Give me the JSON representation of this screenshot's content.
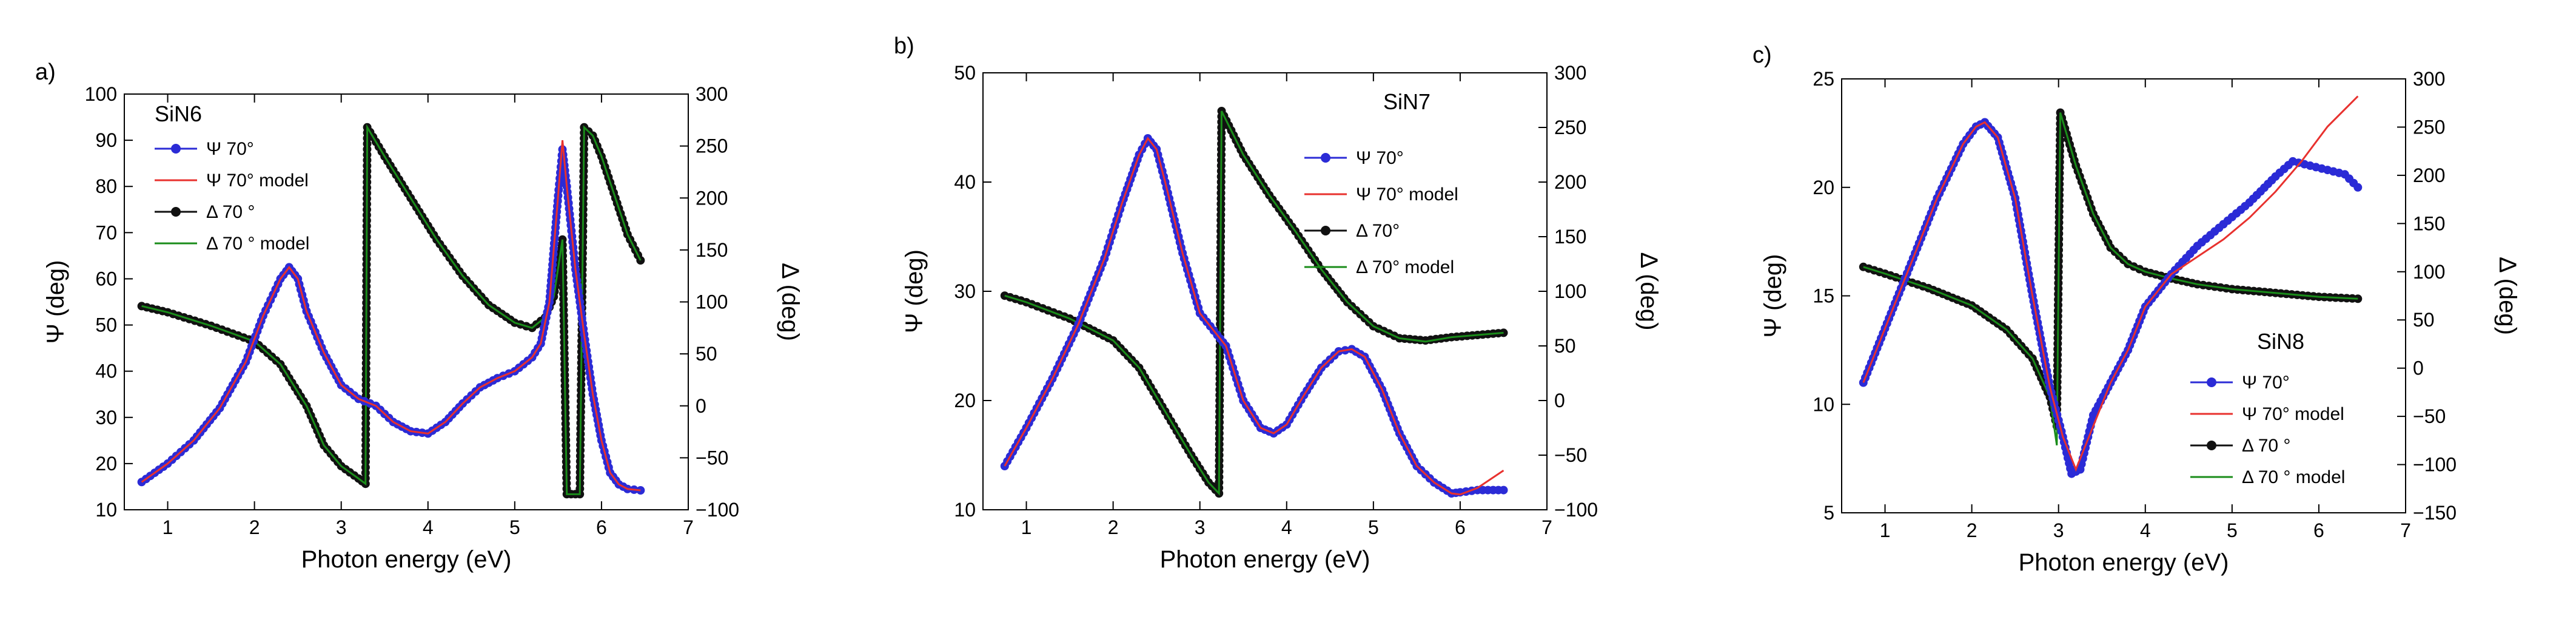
{
  "chart_data": [
    {
      "type": "line",
      "panel_label": "a)",
      "sample": "SiN6",
      "xlabel": "Photon energy (eV)",
      "ylabel": "Ψ (deg)",
      "y2label": "Δ (deg)",
      "xlim": [
        0.5,
        7
      ],
      "ylim": [
        10,
        100
      ],
      "y2lim": [
        -100,
        300
      ],
      "xticks": [
        1,
        2,
        3,
        4,
        5,
        6,
        7
      ],
      "yticks": [
        10,
        20,
        30,
        40,
        50,
        60,
        70,
        80,
        90,
        100
      ],
      "y2ticks": [
        -100,
        -50,
        0,
        50,
        100,
        150,
        200,
        250,
        300
      ],
      "legend": [
        "Ψ 70°",
        "Ψ 70° model",
        "Δ 70 °",
        "Δ 70 ° model"
      ],
      "series": [
        {
          "name": "Ψ 70°",
          "axis": "left",
          "color": "#2b2bd6",
          "x": [
            0.7,
            1.0,
            1.3,
            1.6,
            1.9,
            2.1,
            2.3,
            2.4,
            2.5,
            2.6,
            2.8,
            3.0,
            3.2,
            3.4,
            3.6,
            3.8,
            4.0,
            4.2,
            4.4,
            4.6,
            4.8,
            5.0,
            5.2,
            5.3,
            5.4,
            5.5,
            5.55,
            5.6,
            5.7,
            5.8,
            5.9,
            6.0,
            6.1,
            6.2,
            6.3,
            6.45
          ],
          "values": [
            16,
            20,
            25,
            32,
            42,
            52,
            60,
            62.5,
            60,
            53,
            44,
            37,
            34,
            32.5,
            29,
            27,
            26.5,
            29,
            33,
            36.5,
            38.5,
            40,
            43,
            46,
            55,
            78,
            88,
            80,
            62,
            48,
            35,
            25,
            18,
            15.5,
            14.5,
            14.2
          ]
        },
        {
          "name": "Ψ 70° model",
          "axis": "left",
          "color": "#e8312e",
          "x": [
            0.7,
            1.0,
            1.3,
            1.6,
            1.9,
            2.1,
            2.3,
            2.4,
            2.5,
            2.6,
            2.8,
            3.0,
            3.2,
            3.4,
            3.6,
            3.8,
            4.0,
            4.2,
            4.4,
            4.6,
            4.8,
            5.0,
            5.2,
            5.3,
            5.4,
            5.5,
            5.55,
            5.6,
            5.7,
            5.8,
            5.9,
            6.0,
            6.1,
            6.2,
            6.3,
            6.45
          ],
          "values": [
            16,
            20,
            25,
            32,
            42,
            52,
            60,
            62.5,
            60,
            53,
            44,
            37,
            34,
            32.5,
            29,
            27,
            26.5,
            29,
            33,
            36.5,
            38.5,
            40,
            43,
            46,
            55,
            78,
            90,
            80,
            62,
            48,
            35,
            25,
            18,
            15.5,
            14.5,
            14.2
          ]
        },
        {
          "name": "Δ 70 °",
          "axis": "right",
          "color": "#111111",
          "x": [
            0.7,
            1.0,
            1.5,
            2.0,
            2.3,
            2.6,
            2.8,
            3.0,
            3.2,
            3.28,
            3.3,
            3.5,
            3.8,
            4.1,
            4.4,
            4.7,
            5.0,
            5.2,
            5.35,
            5.45,
            5.55,
            5.6,
            5.65,
            5.75,
            5.8,
            5.9,
            6.0,
            6.1,
            6.2,
            6.3,
            6.45
          ],
          "values": [
            96,
            90,
            77,
            62,
            40,
            0,
            -38,
            -58,
            -70,
            -75,
            268,
            240,
            200,
            160,
            125,
            97,
            80,
            75,
            85,
            105,
            160,
            -85,
            -85,
            -85,
            268,
            260,
            240,
            215,
            190,
            165,
            140
          ]
        },
        {
          "name": "Δ 70 ° model",
          "axis": "right",
          "color": "#1a8c1a",
          "x": [
            0.7,
            1.0,
            1.5,
            2.0,
            2.3,
            2.6,
            2.8,
            3.0,
            3.2,
            3.28,
            3.3,
            3.5,
            3.8,
            4.1,
            4.4,
            4.7,
            5.0,
            5.2,
            5.35,
            5.45,
            5.55,
            5.6,
            5.65,
            5.75,
            5.8,
            5.9,
            6.0,
            6.1,
            6.2,
            6.3,
            6.45
          ],
          "values": [
            96,
            90,
            77,
            62,
            40,
            0,
            -38,
            -58,
            -70,
            -75,
            268,
            240,
            200,
            160,
            125,
            97,
            80,
            75,
            85,
            105,
            160,
            -85,
            -85,
            -85,
            268,
            260,
            240,
            215,
            190,
            165,
            140
          ]
        }
      ]
    },
    {
      "type": "line",
      "panel_label": "b)",
      "sample": "SiN7",
      "xlabel": "Photon energy (eV)",
      "ylabel": "Ψ (deg)",
      "y2label": "Δ (deg)",
      "xlim": [
        0.5,
        7
      ],
      "ylim": [
        10,
        50
      ],
      "y2lim": [
        -100,
        300
      ],
      "xticks": [
        1,
        2,
        3,
        4,
        5,
        6,
        7
      ],
      "yticks": [
        10,
        20,
        30,
        40,
        50
      ],
      "y2ticks": [
        -100,
        -50,
        0,
        50,
        100,
        150,
        200,
        250,
        300
      ],
      "legend": [
        "Ψ 70°",
        "Ψ 70° model",
        "Δ 70°",
        "Δ 70° model"
      ],
      "series": [
        {
          "name": "Ψ 70°",
          "axis": "left",
          "color": "#2b2bd6",
          "x": [
            0.75,
            1.0,
            1.3,
            1.6,
            1.9,
            2.1,
            2.3,
            2.4,
            2.5,
            2.6,
            2.8,
            3.0,
            3.2,
            3.3,
            3.5,
            3.7,
            3.85,
            4.0,
            4.2,
            4.4,
            4.6,
            4.75,
            4.9,
            5.1,
            5.3,
            5.5,
            5.7,
            5.9,
            6.0,
            6.2,
            6.5
          ],
          "values": [
            14,
            17.5,
            22,
            27,
            33,
            38,
            42.5,
            44,
            43,
            40,
            33.5,
            28,
            26,
            25,
            20,
            17.5,
            17,
            17.8,
            20.5,
            23,
            24.5,
            24.7,
            24,
            21,
            17,
            14,
            12.5,
            11.5,
            11.6,
            11.8,
            11.8
          ]
        },
        {
          "name": "Ψ 70° model",
          "axis": "left",
          "color": "#e8312e",
          "x": [
            0.75,
            1.0,
            1.3,
            1.6,
            1.9,
            2.1,
            2.3,
            2.4,
            2.5,
            2.6,
            2.8,
            3.0,
            3.2,
            3.3,
            3.5,
            3.7,
            3.85,
            4.0,
            4.2,
            4.4,
            4.6,
            4.75,
            4.9,
            5.1,
            5.3,
            5.5,
            5.7,
            5.9,
            6.0,
            6.2,
            6.5
          ],
          "values": [
            14,
            17.5,
            22,
            27,
            33,
            38,
            42.5,
            44,
            43,
            40,
            33.5,
            28,
            26,
            25,
            20,
            17.5,
            17,
            17.8,
            20.5,
            23,
            24.5,
            24.7,
            24,
            21,
            17,
            14,
            12.5,
            11.5,
            11.4,
            12,
            13.6
          ]
        },
        {
          "name": "Δ 70°",
          "axis": "right",
          "color": "#111111",
          "x": [
            0.75,
            1.0,
            1.5,
            2.0,
            2.3,
            2.6,
            2.9,
            3.1,
            3.22,
            3.25,
            3.5,
            3.8,
            4.1,
            4.4,
            4.7,
            5.0,
            5.3,
            5.6,
            5.9,
            6.2,
            6.5
          ],
          "values": [
            96,
            90,
            75,
            55,
            30,
            -10,
            -50,
            -75,
            -85,
            265,
            225,
            188,
            155,
            120,
            90,
            68,
            57,
            55,
            58,
            60,
            62
          ]
        },
        {
          "name": "Δ 70° model",
          "axis": "right",
          "color": "#1a8c1a",
          "x": [
            0.75,
            1.0,
            1.5,
            2.0,
            2.3,
            2.6,
            2.9,
            3.1,
            3.22,
            3.25,
            3.5,
            3.8,
            4.1,
            4.4,
            4.7,
            5.0,
            5.3,
            5.6,
            5.9,
            6.2,
            6.5
          ],
          "values": [
            96,
            90,
            75,
            55,
            30,
            -10,
            -50,
            -75,
            -85,
            265,
            225,
            188,
            155,
            120,
            90,
            68,
            57,
            54,
            58,
            60,
            62
          ]
        }
      ]
    },
    {
      "type": "line",
      "panel_label": "c)",
      "sample": "SiN8",
      "xlabel": "Photon energy (eV)",
      "ylabel": "Ψ (deg)",
      "y2label": "Δ (deg)",
      "xlim": [
        0.5,
        7
      ],
      "ylim": [
        5,
        25
      ],
      "y2lim": [
        -150,
        300
      ],
      "xticks": [
        1,
        2,
        3,
        4,
        5,
        6,
        7
      ],
      "yticks": [
        5,
        10,
        15,
        20,
        25
      ],
      "y2ticks": [
        -150,
        -100,
        -50,
        0,
        50,
        100,
        150,
        200,
        250,
        300
      ],
      "legend": [
        "Ψ 70°",
        "Ψ 70° model",
        "Δ 70 °",
        "Δ 70 ° model"
      ],
      "series": [
        {
          "name": "Ψ 70°",
          "axis": "left",
          "color": "#2b2bd6",
          "x": [
            0.75,
            1.0,
            1.3,
            1.6,
            1.9,
            2.05,
            2.15,
            2.3,
            2.5,
            2.7,
            2.9,
            3.05,
            3.15,
            3.25,
            3.4,
            3.6,
            3.8,
            4.0,
            4.3,
            4.6,
            4.9,
            5.2,
            5.5,
            5.7,
            5.9,
            6.1,
            6.3,
            6.45
          ],
          "values": [
            11,
            13.5,
            16.5,
            19.5,
            22,
            22.8,
            23,
            22.3,
            19.5,
            15,
            10.8,
            8.5,
            6.8,
            7,
            9.5,
            11,
            12.5,
            14.5,
            16,
            17.3,
            18.3,
            19.3,
            20.5,
            21.2,
            21,
            20.8,
            20.6,
            20
          ]
        },
        {
          "name": "Ψ 70° model",
          "axis": "left",
          "color": "#e8312e",
          "x": [
            0.75,
            1.0,
            1.3,
            1.6,
            1.9,
            2.05,
            2.15,
            2.3,
            2.5,
            2.7,
            2.9,
            3.05,
            3.2,
            3.4,
            3.6,
            3.8,
            4.0,
            4.3,
            4.6,
            4.9,
            5.2,
            5.5,
            5.8,
            6.1,
            6.45
          ],
          "values": [
            11,
            13.5,
            16.5,
            19.5,
            22,
            22.8,
            23,
            22.3,
            19.5,
            15,
            10.8,
            8.5,
            7,
            9,
            11,
            12.5,
            14.5,
            16,
            16.8,
            17.6,
            18.6,
            19.8,
            21.2,
            22.8,
            24.2
          ]
        },
        {
          "name": "Δ 70 °",
          "axis": "right",
          "color": "#111111",
          "x": [
            0.75,
            1.0,
            1.5,
            2.0,
            2.4,
            2.7,
            2.9,
            2.98,
            3.02,
            3.2,
            3.4,
            3.6,
            3.8,
            4.0,
            4.3,
            4.6,
            5.0,
            5.5,
            6.0,
            6.45
          ],
          "values": [
            105,
            98,
            83,
            65,
            40,
            10,
            -30,
            -60,
            265,
            210,
            160,
            125,
            108,
            100,
            93,
            87,
            82,
            78,
            74,
            72
          ]
        },
        {
          "name": "Δ 70 ° model",
          "axis": "right",
          "color": "#1a8c1a",
          "x": [
            0.75,
            1.0,
            1.5,
            2.0,
            2.4,
            2.7,
            2.9,
            2.98,
            3.02,
            3.2,
            3.4,
            3.6,
            3.8,
            4.0,
            4.3,
            4.6,
            5.0,
            5.5,
            6.0,
            6.45
          ],
          "values": [
            105,
            98,
            83,
            65,
            40,
            10,
            -30,
            -80,
            265,
            210,
            160,
            125,
            108,
            100,
            93,
            87,
            82,
            78,
            74,
            72
          ]
        }
      ]
    }
  ]
}
